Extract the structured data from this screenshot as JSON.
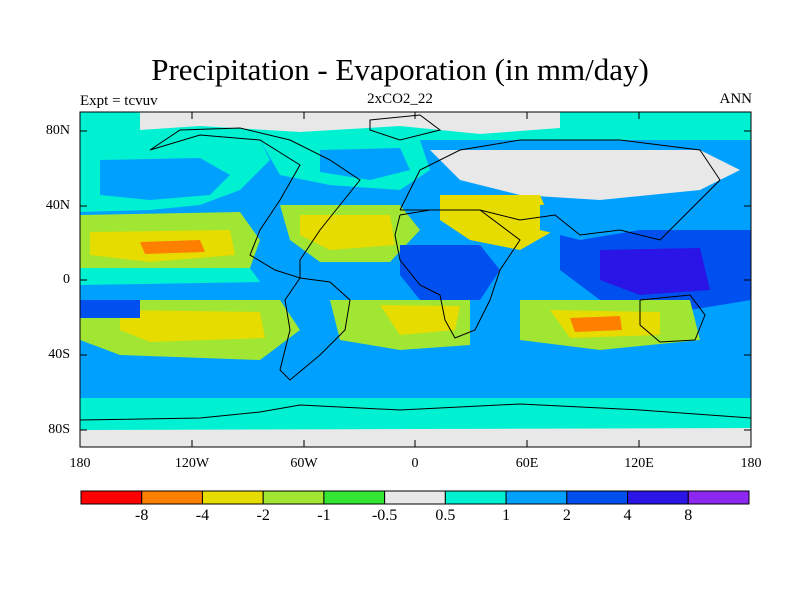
{
  "title": "Precipitation - Evaporation (in mm/day)",
  "left_label": "Expt = tcvuv",
  "center_label": "2xCO2_22",
  "right_label": "ANN",
  "axes": {
    "y_ticks": [
      "80N",
      "40N",
      "0",
      "40S",
      "80S"
    ],
    "x_ticks": [
      "180",
      "120W",
      "60W",
      "0",
      "60E",
      "120E",
      "180"
    ]
  },
  "colorbar": {
    "colors": [
      "#ff0000",
      "#ff7f00",
      "#e6dc00",
      "#a0e632",
      "#32e632",
      "#e8e8e8",
      "#00f0d2",
      "#00a0ff",
      "#0050f0",
      "#2a14e6",
      "#8c28f0"
    ],
    "labels": [
      "-8",
      "-4",
      "-2",
      "-1",
      "-0.5",
      "0.5",
      "1",
      "2",
      "4",
      "8"
    ]
  },
  "colors": {
    "land_coast": "#000000",
    "background": "#ffffff"
  }
}
